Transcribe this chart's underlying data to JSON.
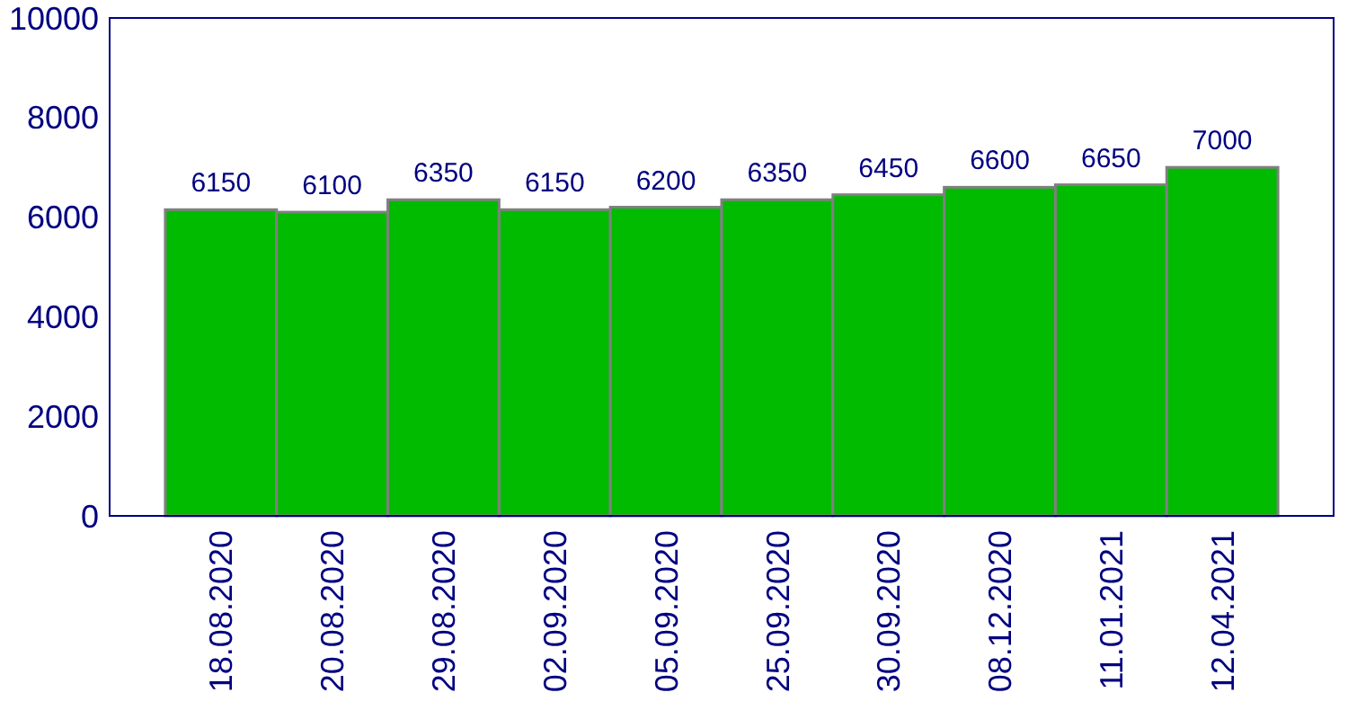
{
  "chart_data": {
    "type": "bar",
    "categories": [
      "18.08.2020",
      "20.08.2020",
      "29.08.2020",
      "02.09.2020",
      "05.09.2020",
      "25.09.2020",
      "30.09.2020",
      "08.12.2020",
      "11.01.2021",
      "12.04.2021"
    ],
    "values": [
      6150,
      6100,
      6350,
      6150,
      6200,
      6350,
      6450,
      6600,
      6650,
      7000
    ],
    "color": "#00bb00",
    "ylim": [
      0,
      10000
    ],
    "yticks": [
      0,
      2000,
      4000,
      6000,
      8000,
      10000
    ],
    "data_labels": true
  }
}
